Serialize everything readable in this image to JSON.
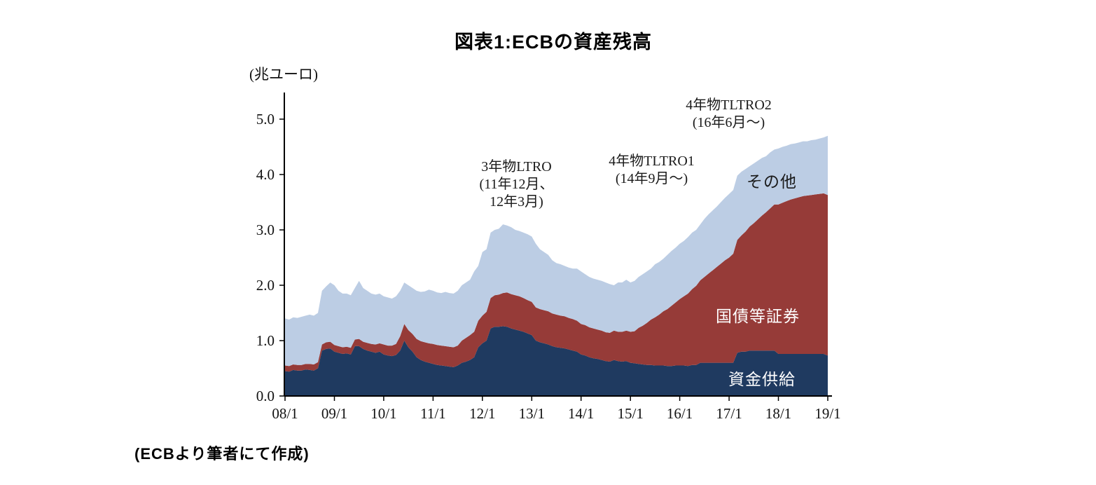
{
  "title": "図表1:ECBの資産残高",
  "unit_label": "(兆ユーロ)",
  "source_note": "(ECBより筆者にて作成)",
  "annotations": [
    {
      "lines": [
        "3年物LTRO",
        "(11年12月、",
        "12年3月)"
      ]
    },
    {
      "lines": [
        "4年物TLTRO1",
        "(14年9月〜)"
      ]
    },
    {
      "lines": [
        "4年物TLTRO2",
        "(16年6月〜)"
      ]
    }
  ],
  "colors": {
    "funds_supply": "#1F3A60",
    "securities": "#963B38",
    "other": "#BCCDE4",
    "axis": "#000000"
  },
  "chart_data": {
    "type": "area",
    "stacked": true,
    "title": "図表1:ECBの資産残高",
    "ylabel": "(兆ユーロ)",
    "ylim": [
      0,
      5.2
    ],
    "grid": false,
    "x_start": "2008/1",
    "x_end": "2019/1",
    "x_frequency": "monthly",
    "x_tick_labels": [
      "08/1",
      "09/1",
      "10/1",
      "11/1",
      "12/1",
      "13/1",
      "14/1",
      "15/1",
      "16/1",
      "17/1",
      "18/1",
      "19/1"
    ],
    "y_tick_labels": [
      "0.0",
      "1.0",
      "2.0",
      "3.0",
      "4.0",
      "5.0"
    ],
    "series": [
      {
        "name": "資金供給",
        "color": "#1F3A60",
        "values": [
          0.45,
          0.44,
          0.47,
          0.46,
          0.46,
          0.48,
          0.47,
          0.46,
          0.5,
          0.82,
          0.85,
          0.86,
          0.8,
          0.78,
          0.76,
          0.77,
          0.75,
          0.9,
          0.9,
          0.85,
          0.82,
          0.8,
          0.78,
          0.8,
          0.75,
          0.73,
          0.72,
          0.74,
          0.82,
          1.0,
          0.88,
          0.8,
          0.7,
          0.65,
          0.62,
          0.6,
          0.58,
          0.56,
          0.55,
          0.54,
          0.53,
          0.52,
          0.55,
          0.6,
          0.62,
          0.65,
          0.7,
          0.88,
          0.95,
          1.0,
          1.22,
          1.25,
          1.25,
          1.26,
          1.25,
          1.22,
          1.2,
          1.18,
          1.16,
          1.13,
          1.1,
          1.0,
          0.97,
          0.95,
          0.93,
          0.9,
          0.88,
          0.87,
          0.86,
          0.84,
          0.82,
          0.8,
          0.75,
          0.73,
          0.7,
          0.68,
          0.67,
          0.65,
          0.63,
          0.62,
          0.65,
          0.63,
          0.62,
          0.63,
          0.6,
          0.59,
          0.58,
          0.57,
          0.56,
          0.56,
          0.55,
          0.55,
          0.55,
          0.54,
          0.54,
          0.55,
          0.55,
          0.55,
          0.54,
          0.56,
          0.56,
          0.6,
          0.6,
          0.6,
          0.6,
          0.6,
          0.6,
          0.6,
          0.6,
          0.6,
          0.78,
          0.8,
          0.8,
          0.82,
          0.82,
          0.82,
          0.82,
          0.82,
          0.82,
          0.82,
          0.76,
          0.76,
          0.76,
          0.76,
          0.76,
          0.76,
          0.76,
          0.76,
          0.76,
          0.76,
          0.76,
          0.76,
          0.73
        ]
      },
      {
        "name": "国債等証券",
        "color": "#963B38",
        "values": [
          0.1,
          0.1,
          0.1,
          0.1,
          0.1,
          0.1,
          0.11,
          0.11,
          0.11,
          0.11,
          0.12,
          0.12,
          0.12,
          0.12,
          0.12,
          0.12,
          0.12,
          0.12,
          0.13,
          0.13,
          0.14,
          0.14,
          0.15,
          0.15,
          0.18,
          0.18,
          0.19,
          0.2,
          0.26,
          0.3,
          0.31,
          0.32,
          0.33,
          0.34,
          0.35,
          0.35,
          0.36,
          0.36,
          0.36,
          0.36,
          0.36,
          0.36,
          0.36,
          0.4,
          0.43,
          0.45,
          0.46,
          0.48,
          0.5,
          0.52,
          0.55,
          0.57,
          0.58,
          0.6,
          0.62,
          0.62,
          0.62,
          0.62,
          0.61,
          0.6,
          0.6,
          0.6,
          0.6,
          0.6,
          0.6,
          0.59,
          0.59,
          0.58,
          0.58,
          0.57,
          0.57,
          0.56,
          0.55,
          0.55,
          0.54,
          0.54,
          0.53,
          0.53,
          0.52,
          0.52,
          0.53,
          0.53,
          0.54,
          0.55,
          0.56,
          0.58,
          0.65,
          0.7,
          0.76,
          0.82,
          0.87,
          0.92,
          0.98,
          1.03,
          1.09,
          1.14,
          1.2,
          1.25,
          1.31,
          1.37,
          1.43,
          1.49,
          1.55,
          1.61,
          1.67,
          1.73,
          1.79,
          1.85,
          1.9,
          1.97,
          2.04,
          2.1,
          2.17,
          2.24,
          2.3,
          2.37,
          2.44,
          2.5,
          2.57,
          2.64,
          2.7,
          2.73,
          2.76,
          2.79,
          2.81,
          2.83,
          2.85,
          2.86,
          2.87,
          2.88,
          2.89,
          2.9,
          2.9
        ]
      },
      {
        "name": "その他",
        "color": "#BCCDE4",
        "values": [
          0.85,
          0.84,
          0.85,
          0.85,
          0.87,
          0.87,
          0.89,
          0.88,
          0.89,
          0.97,
          1.01,
          1.07,
          1.08,
          1.0,
          0.97,
          0.96,
          0.95,
          0.93,
          1.05,
          0.97,
          0.94,
          0.91,
          0.9,
          0.9,
          0.87,
          0.87,
          0.85,
          0.86,
          0.82,
          0.75,
          0.81,
          0.83,
          0.87,
          0.89,
          0.92,
          0.97,
          0.96,
          0.95,
          0.95,
          0.98,
          0.97,
          0.97,
          0.99,
          1.0,
          1.0,
          1.0,
          1.09,
          0.99,
          1.15,
          1.13,
          1.18,
          1.18,
          1.19,
          1.24,
          1.21,
          1.21,
          1.18,
          1.18,
          1.18,
          1.19,
          1.18,
          1.15,
          1.08,
          1.05,
          1.02,
          0.96,
          0.93,
          0.93,
          0.91,
          0.91,
          0.91,
          0.94,
          0.95,
          0.92,
          0.91,
          0.9,
          0.9,
          0.9,
          0.9,
          0.88,
          0.82,
          0.89,
          0.89,
          0.92,
          0.89,
          0.91,
          0.92,
          0.93,
          0.93,
          0.92,
          0.96,
          0.95,
          0.95,
          0.98,
          0.99,
          0.99,
          1.0,
          1.0,
          1.02,
          1.02,
          1.01,
          1.01,
          1.05,
          1.07,
          1.08,
          1.09,
          1.11,
          1.13,
          1.15,
          1.15,
          1.16,
          1.15,
          1.13,
          1.09,
          1.08,
          1.06,
          1.04,
          1.01,
          1.01,
          0.99,
          1.01,
          1.01,
          1.0,
          1.0,
          0.99,
          0.99,
          0.99,
          0.98,
          0.99,
          0.99,
          1.0,
          1.01,
          1.07
        ]
      }
    ]
  }
}
